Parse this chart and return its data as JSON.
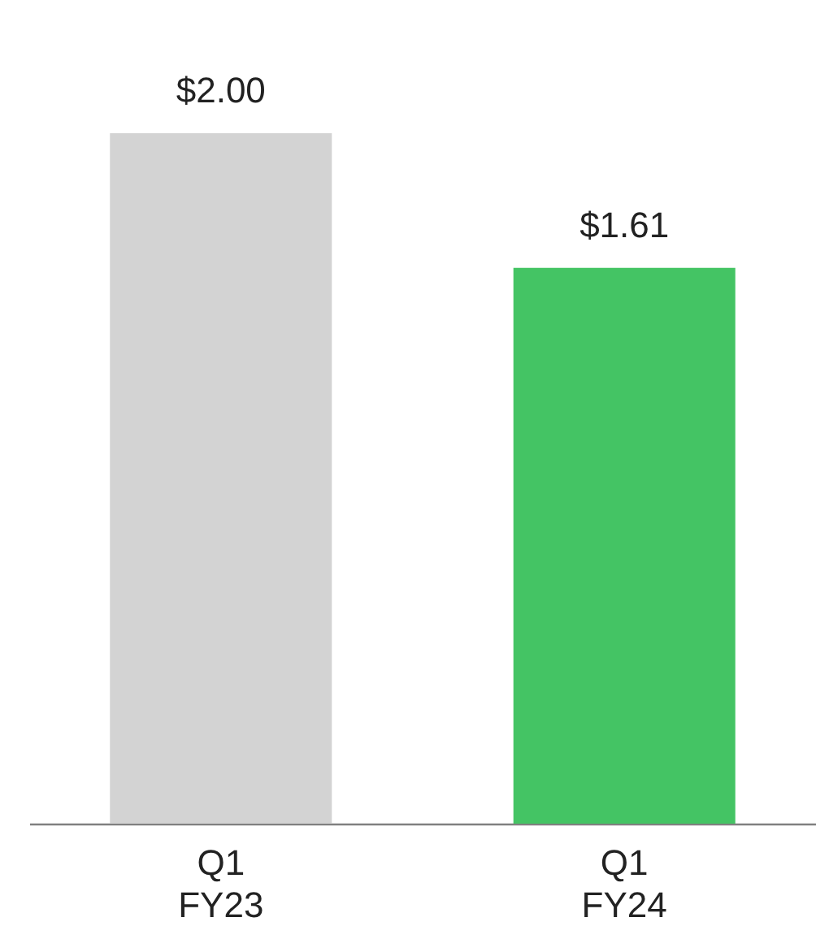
{
  "chart_data": {
    "type": "bar",
    "categories": [
      "Q1\nFY23",
      "Q1\nFY24"
    ],
    "values": [
      2.0,
      1.61
    ],
    "colors": [
      "#d3d3d3",
      "#44c464"
    ],
    "value_labels": [
      "$2.00",
      "$1.61"
    ]
  }
}
